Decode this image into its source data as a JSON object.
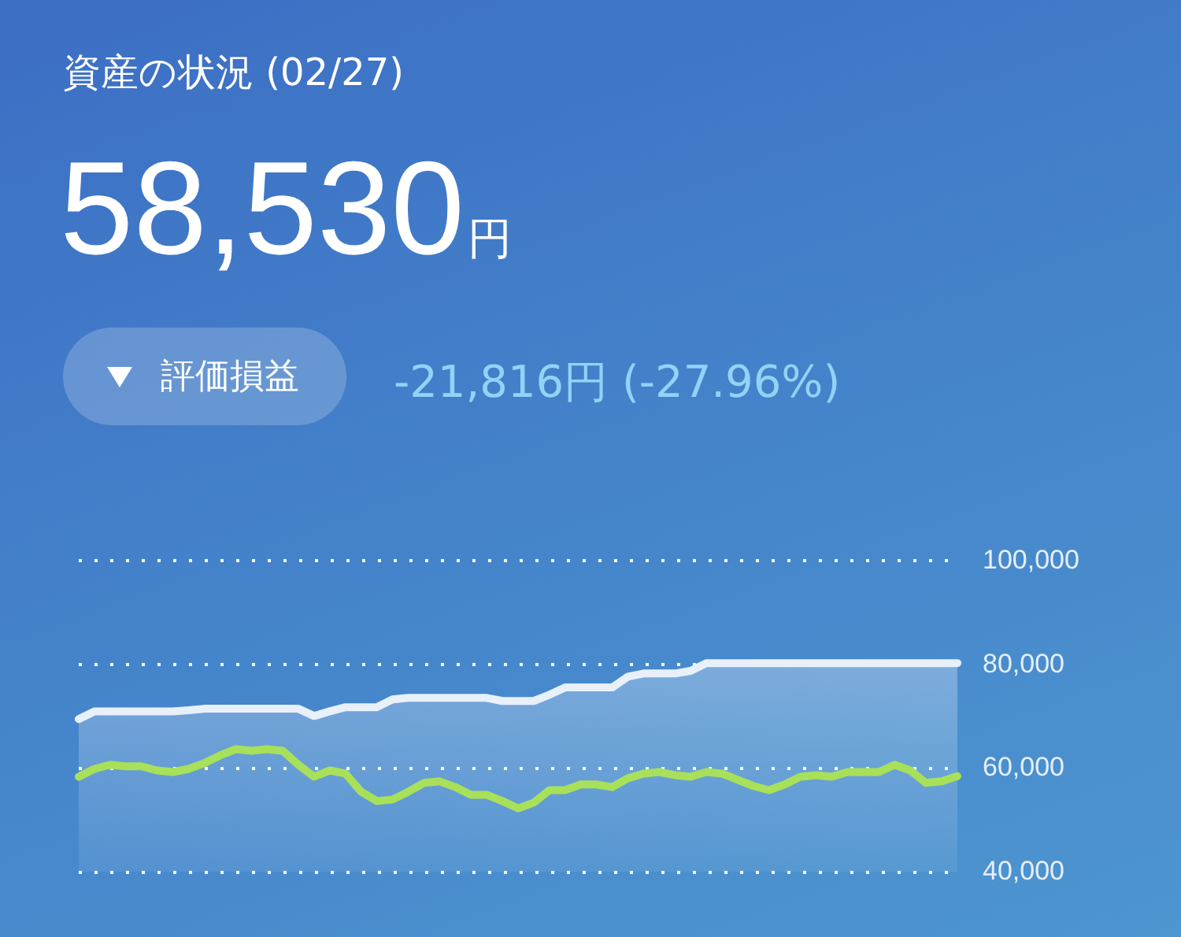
{
  "chart_data": {
    "type": "line",
    "title": "資産の状況 (02/27)",
    "annotations": [
      "58,530円",
      "評価損益",
      "-21,816円 (-27.96%)"
    ],
    "categories": [
      null,
      null,
      null,
      null,
      null,
      null,
      null,
      null,
      null,
      null,
      null,
      null,
      null,
      null,
      null,
      null,
      null,
      null,
      null,
      null,
      null,
      null,
      null,
      null,
      null,
      null,
      null,
      null,
      null,
      null,
      null,
      null,
      null,
      null,
      null,
      null,
      null,
      null,
      null,
      null,
      null,
      null,
      null,
      null,
      null,
      null,
      null,
      null,
      null,
      null,
      null,
      null,
      null,
      null,
      null,
      null,
      null
    ],
    "series": [
      {
        "type": "area",
        "color": "#e8f0fa",
        "values": [
          69500,
          71000,
          71000,
          71000,
          71000,
          71000,
          71000,
          71200,
          71500,
          71500,
          71500,
          71500,
          71500,
          71500,
          71500,
          70100,
          71000,
          71800,
          71800,
          71800,
          73300,
          73600,
          73600,
          73600,
          73600,
          73600,
          73600,
          73000,
          73000,
          73000,
          74200,
          75600,
          75600,
          75600,
          75600,
          77700,
          78300,
          78300,
          78300,
          78800,
          80300,
          80300,
          80300,
          80300,
          80300,
          80300,
          80300,
          80300,
          80300,
          80300,
          80300,
          80300,
          80300,
          80300,
          80300,
          80300,
          80300
        ]
      },
      {
        "type": "line",
        "color": "#a8e05a",
        "values": [
          58400,
          59900,
          60700,
          60400,
          60400,
          59600,
          59300,
          59900,
          61000,
          62500,
          63700,
          63400,
          63700,
          63400,
          60700,
          58400,
          59600,
          59000,
          55500,
          53700,
          54000,
          55500,
          57200,
          57500,
          56400,
          54900,
          54900,
          53700,
          52300,
          53400,
          55800,
          55800,
          56900,
          56900,
          56400,
          58100,
          59000,
          59300,
          58700,
          58400,
          59300,
          59000,
          57800,
          56600,
          55800,
          56900,
          58400,
          58700,
          58400,
          59300,
          59300,
          59300,
          60700,
          59600,
          57200,
          57500,
          58500
        ]
      }
    ],
    "ylim": [
      40000,
      100000
    ],
    "yticks": [
      {
        "value": 40000,
        "label": "40,000"
      },
      {
        "value": 60000,
        "label": "60,000"
      },
      {
        "value": 80000,
        "label": "80,000"
      },
      {
        "value": 100000,
        "label": "100,000"
      }
    ],
    "grid": "y",
    "legend": false,
    "tick_labels": "y",
    "marker": "none",
    "line_style": "solid"
  }
}
